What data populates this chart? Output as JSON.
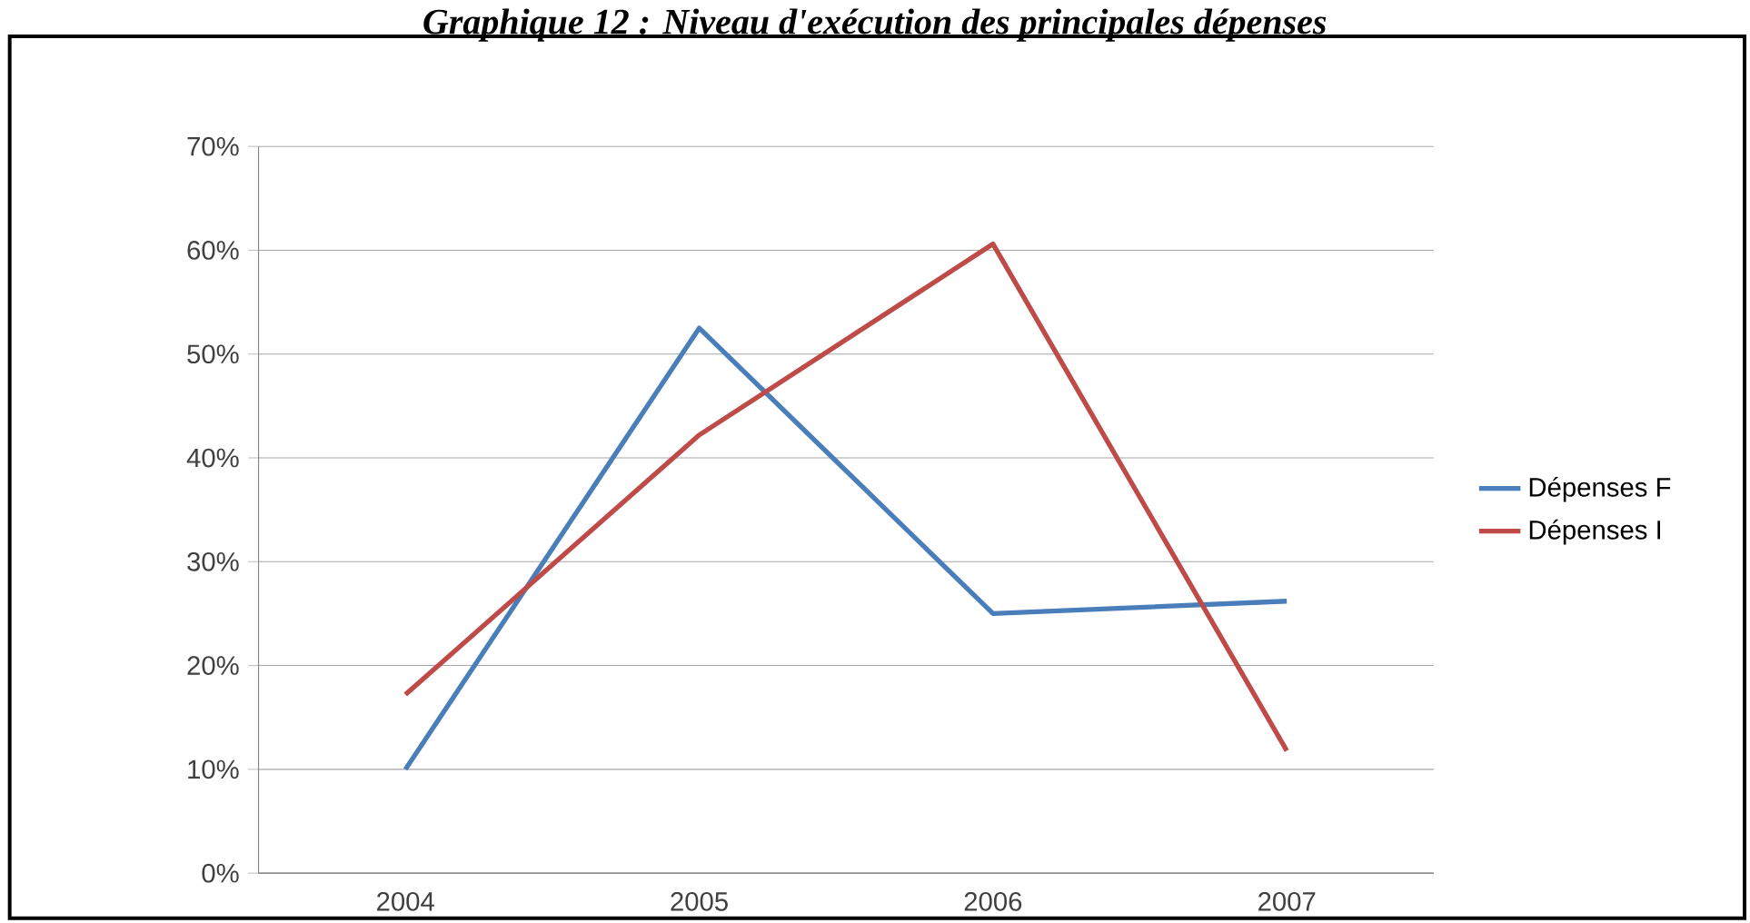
{
  "chart_data": {
    "type": "line",
    "title": "Graphique 12 : Niveau d'exécution des principales dépenses",
    "categories": [
      "2004",
      "2005",
      "2006",
      "2007"
    ],
    "series": [
      {
        "name": "Dépenses F",
        "color": "#4a7ebb",
        "values": [
          10,
          52.5,
          25,
          26.2
        ]
      },
      {
        "name": "Dépenses I",
        "color": "#be4b48",
        "values": [
          17.2,
          42.2,
          60.6,
          11.8
        ]
      }
    ],
    "ylim": [
      0,
      70
    ],
    "yticks": [
      {
        "value": 0,
        "label": "0%"
      },
      {
        "value": 10,
        "label": "10%"
      },
      {
        "value": 20,
        "label": "20%"
      },
      {
        "value": 30,
        "label": "30%"
      },
      {
        "value": 40,
        "label": "40%"
      },
      {
        "value": 50,
        "label": "50%"
      },
      {
        "value": 60,
        "label": "60%"
      },
      {
        "value": 70,
        "label": "70%"
      }
    ],
    "grid": "y",
    "legend": "right",
    "marker": "none",
    "line_style": "solid"
  }
}
